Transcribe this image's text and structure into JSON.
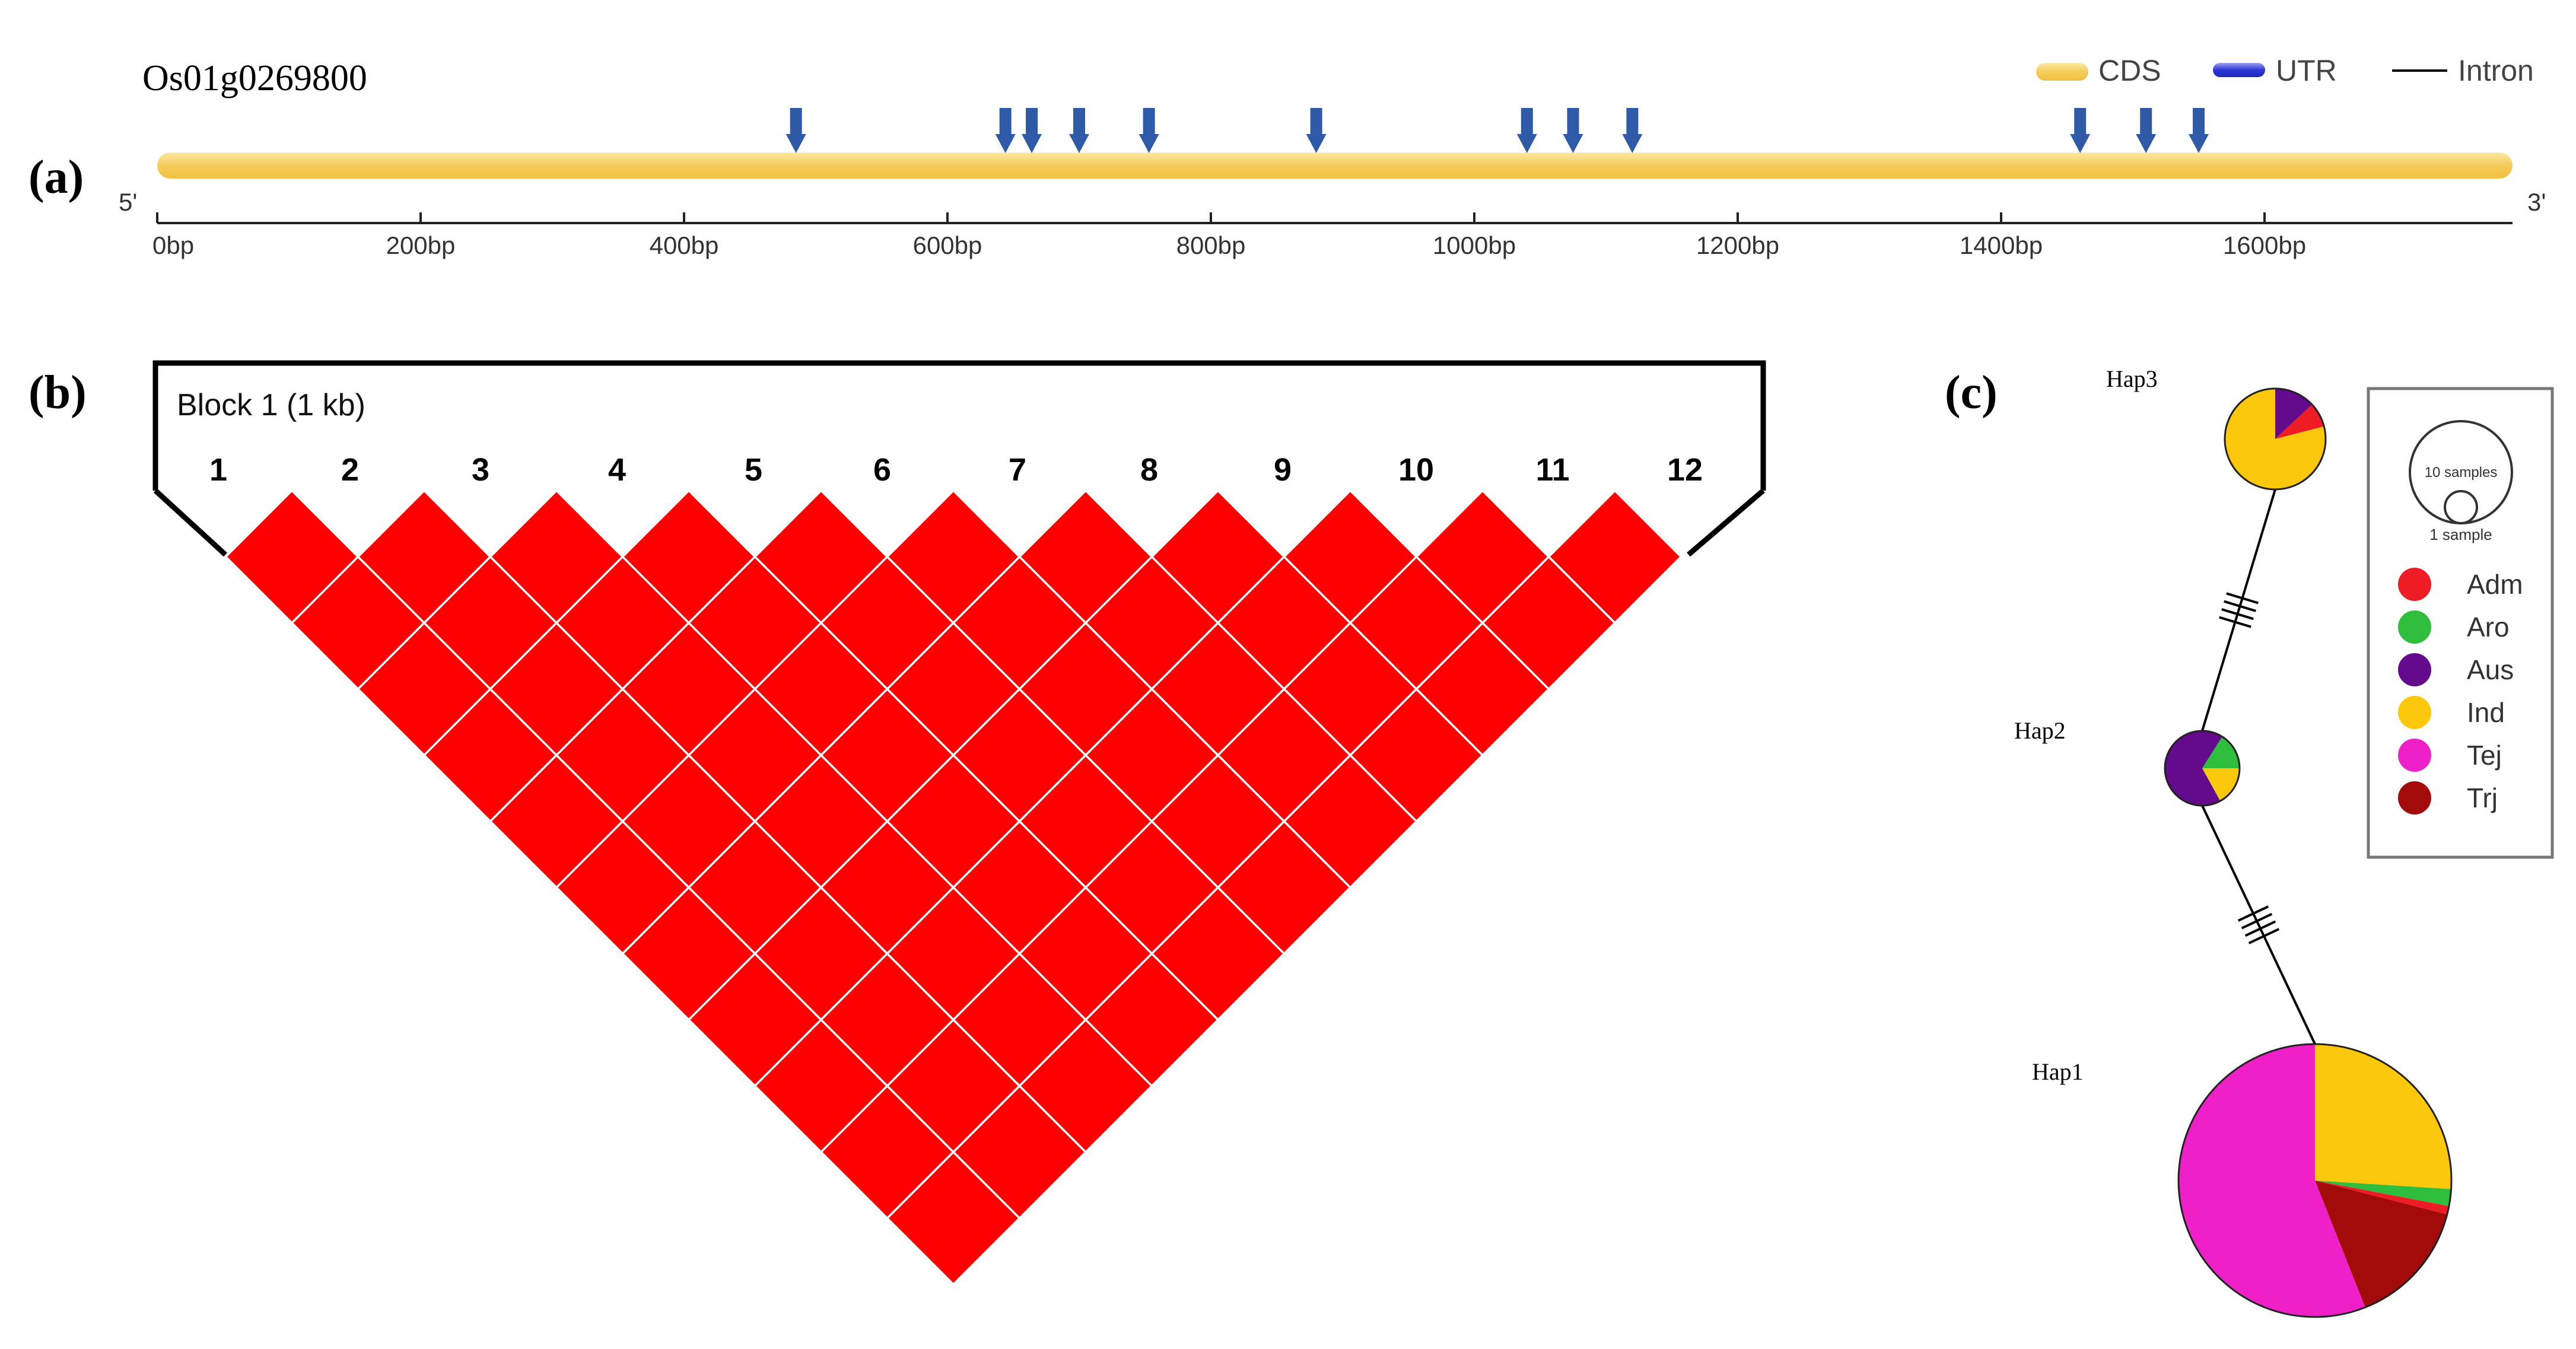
{
  "panels": {
    "a": {
      "label": "(a)",
      "gene_id": "Os01g0269800",
      "legend": [
        {
          "key": "cds",
          "label": "CDS",
          "color": "#f5cc5a"
        },
        {
          "key": "utr",
          "label": "UTR",
          "color": "#2c36d6"
        },
        {
          "key": "intron",
          "label": "Intron",
          "color": "#000000"
        }
      ],
      "end5": "5'",
      "end3": "3'",
      "ticks": [
        {
          "bp": 0,
          "label": "0bp"
        },
        {
          "bp": 200,
          "label": "200bp"
        },
        {
          "bp": 400,
          "label": "400bp"
        },
        {
          "bp": 600,
          "label": "600bp"
        },
        {
          "bp": 800,
          "label": "800bp"
        },
        {
          "bp": 1000,
          "label": "1000bp"
        },
        {
          "bp": 1200,
          "label": "1200bp"
        },
        {
          "bp": 1400,
          "label": "1400bp"
        },
        {
          "bp": 1600,
          "label": "1600bp"
        }
      ],
      "axis_max_bp": 1783,
      "snp_positions_bp": [
        485,
        644,
        664,
        700,
        753,
        880,
        1040,
        1075,
        1120,
        1460,
        1510,
        1550
      ]
    },
    "b": {
      "label": "(b)",
      "block_title": "Block 1 (1 kb)",
      "markers": [
        "1",
        "2",
        "3",
        "4",
        "5",
        "6",
        "7",
        "8",
        "9",
        "10",
        "11",
        "12"
      ],
      "ld_color": "#ff0000"
    },
    "c": {
      "label": "(c)",
      "size_legend": {
        "big_label": "10 samples",
        "small_label": "1 sample"
      },
      "groups": [
        {
          "name": "Adm",
          "color": "#ee1c24"
        },
        {
          "name": "Aro",
          "color": "#2ebd3c"
        },
        {
          "name": "Aus",
          "color": "#640a8c"
        },
        {
          "name": "Ind",
          "color": "#fcc80c"
        },
        {
          "name": "Tej",
          "color": "#f020c8"
        },
        {
          "name": "Trj",
          "color": "#a30a0a"
        }
      ],
      "haplotypes": [
        {
          "name": "Hap3",
          "composition": {
            "Ind": 0.79,
            "Aus": 0.13,
            "Adm": 0.08
          }
        },
        {
          "name": "Hap2",
          "composition": {
            "Aus": 0.67,
            "Ind": 0.17,
            "Aro": 0.16
          }
        },
        {
          "name": "Hap1",
          "composition": {
            "Ind": 0.26,
            "Aro": 0.02,
            "Adm": 0.01,
            "Trj": 0.15,
            "Tej": 0.56
          }
        }
      ],
      "links": [
        {
          "from": "Hap3",
          "to": "Hap2",
          "mutations": 4
        },
        {
          "from": "Hap2",
          "to": "Hap1",
          "mutations": 4
        }
      ]
    }
  }
}
